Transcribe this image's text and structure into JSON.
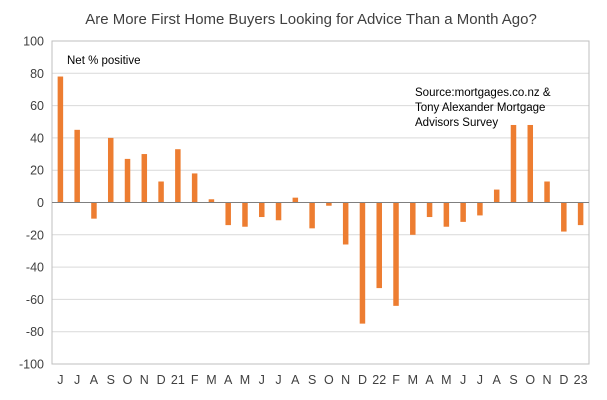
{
  "chart_data": {
    "type": "bar",
    "title": "Are More First Home Buyers Looking for Advice Than a Month Ago?",
    "annotations": {
      "series_label": "Net % positive",
      "source": [
        "Source:mortgages.co.nz  &",
        "Tony Alexander Mortgage",
        "Advisors Survey"
      ]
    },
    "xlabel": "",
    "ylabel": "",
    "ylim": [
      -100,
      100
    ],
    "yticks": [
      -100,
      -80,
      -60,
      -40,
      -20,
      0,
      20,
      40,
      60,
      80,
      100
    ],
    "grid": true,
    "bar_color": "#ED7D31",
    "categories": [
      "J",
      "J",
      "A",
      "S",
      "O",
      "N",
      "D",
      "21",
      "F",
      "M",
      "A",
      "M",
      "J",
      "J",
      "A",
      "S",
      "O",
      "N",
      "D",
      "22",
      "F",
      "M",
      "A",
      "M",
      "J",
      "J",
      "A",
      "S",
      "O",
      "N",
      "D",
      "23"
    ],
    "series": [
      {
        "name": "Net % positive",
        "values": [
          78,
          45,
          -10,
          40,
          27,
          30,
          13,
          33,
          18,
          2,
          -14,
          -15,
          -9,
          -11,
          3,
          -16,
          -2,
          -26,
          -75,
          -53,
          -64,
          -20,
          -9,
          -15,
          -12,
          -8,
          8,
          48,
          48,
          13,
          -18,
          -14
        ]
      }
    ]
  }
}
